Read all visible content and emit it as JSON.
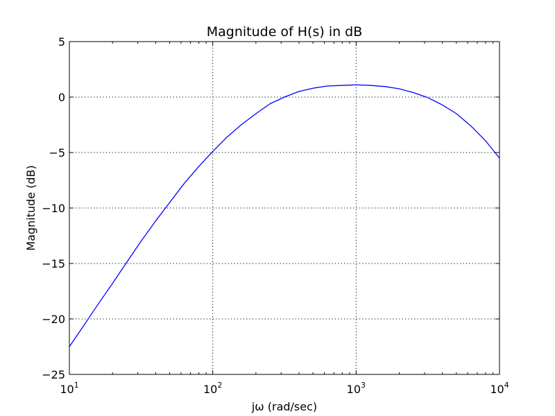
{
  "chart_data": {
    "type": "line",
    "title": "Magnitude of H(s) in dB",
    "xlabel": "jω (rad/sec)",
    "ylabel": "Magnitude (dB)",
    "x_scale": "log",
    "xlim": [
      10,
      10000
    ],
    "ylim": [
      -25,
      5
    ],
    "grid": true,
    "x_ticks": [
      {
        "value": 10,
        "base": "10",
        "exp": "1"
      },
      {
        "value": 100,
        "base": "10",
        "exp": "2"
      },
      {
        "value": 1000,
        "base": "10",
        "exp": "3"
      },
      {
        "value": 10000,
        "base": "10",
        "exp": "4"
      }
    ],
    "y_ticks": [
      {
        "value": 5,
        "label": "5"
      },
      {
        "value": 0,
        "label": "0"
      },
      {
        "value": -5,
        "label": "−5"
      },
      {
        "value": -10,
        "label": "−10"
      },
      {
        "value": -15,
        "label": "−15"
      },
      {
        "value": -20,
        "label": "−20"
      },
      {
        "value": -25,
        "label": "−25"
      }
    ],
    "series": [
      {
        "color": "#0000ff",
        "x": [
          10,
          12.6,
          15.8,
          20,
          25.1,
          31.6,
          39.8,
          50.1,
          63.1,
          79.4,
          100,
          126,
          158,
          200,
          251,
          316,
          398,
          501,
          631,
          794,
          1000,
          1259,
          1585,
          1995,
          2512,
          3162,
          3981,
          5012,
          6310,
          7943,
          10000
        ],
        "y": [
          -22.5,
          -20.6,
          -18.7,
          -16.8,
          -14.9,
          -13.0,
          -11.2,
          -9.5,
          -7.8,
          -6.3,
          -4.9,
          -3.6,
          -2.5,
          -1.5,
          -0.6,
          0.0,
          0.5,
          0.8,
          1.0,
          1.05,
          1.1,
          1.05,
          0.95,
          0.75,
          0.4,
          -0.05,
          -0.7,
          -1.5,
          -2.6,
          -3.9,
          -5.5
        ]
      }
    ]
  }
}
